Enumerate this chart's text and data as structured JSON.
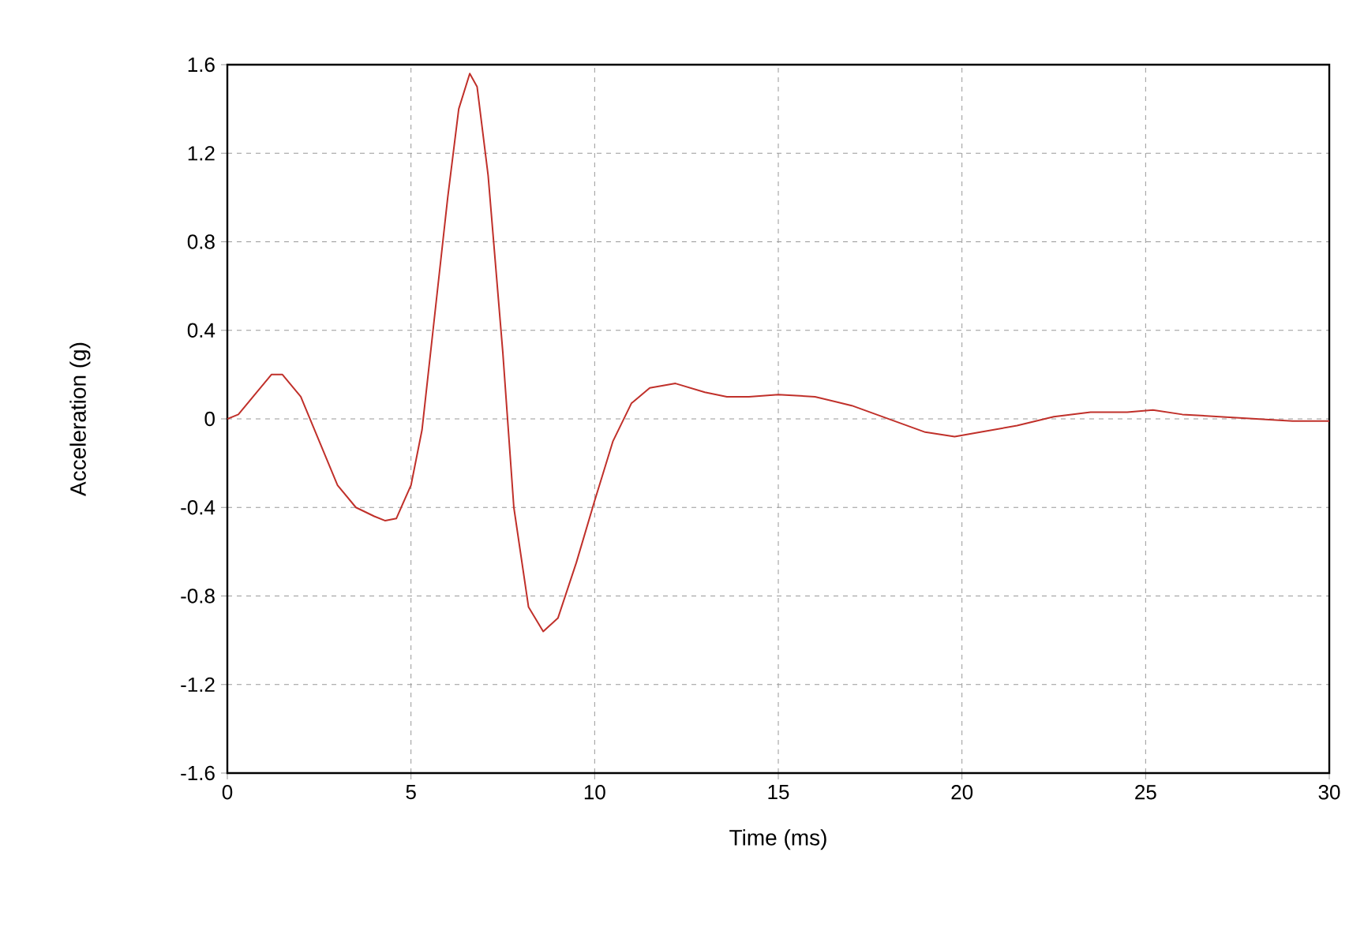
{
  "chart_data": {
    "type": "line",
    "xlabel": "Time (ms)",
    "ylabel": "Acceleration (g)",
    "xlim": [
      0,
      30
    ],
    "ylim": [
      -1.6,
      1.6
    ],
    "xticks": [
      0,
      5,
      10,
      15,
      20,
      25,
      30
    ],
    "yticks": [
      -1.6,
      -1.2,
      -0.8,
      -0.4,
      0,
      0.4,
      0.8,
      1.2,
      1.6
    ],
    "grid": true,
    "marker": "none",
    "line_style": "solid",
    "series": [
      {
        "color": "#c0302a",
        "x": [
          0,
          0.3,
          0.7,
          1.2,
          1.5,
          2,
          2.5,
          3,
          3.5,
          4,
          4.3,
          4.6,
          5,
          5.3,
          5.6,
          6,
          6.3,
          6.6,
          6.8,
          7.1,
          7.5,
          7.8,
          8.2,
          8.6,
          9,
          9.5,
          10,
          10.5,
          11,
          11.5,
          12.2,
          13,
          13.6,
          14.2,
          15,
          16,
          17,
          18,
          19,
          19.8,
          20.5,
          21.5,
          22.5,
          23.5,
          24.5,
          25.2,
          26,
          27,
          28,
          29,
          30
        ],
        "values": [
          0,
          0.02,
          0.1,
          0.2,
          0.2,
          0.1,
          -0.1,
          -0.3,
          -0.4,
          -0.44,
          -0.46,
          -0.45,
          -0.3,
          -0.05,
          0.4,
          1.0,
          1.4,
          1.56,
          1.5,
          1.1,
          0.3,
          -0.4,
          -0.85,
          -0.96,
          -0.9,
          -0.65,
          -0.37,
          -0.1,
          0.07,
          0.14,
          0.16,
          0.12,
          0.1,
          0.1,
          0.11,
          0.1,
          0.06,
          0.0,
          -0.06,
          -0.08,
          -0.06,
          -0.03,
          0.01,
          0.03,
          0.03,
          0.04,
          0.02,
          0.01,
          0.0,
          -0.01,
          -0.01
        ]
      }
    ]
  }
}
